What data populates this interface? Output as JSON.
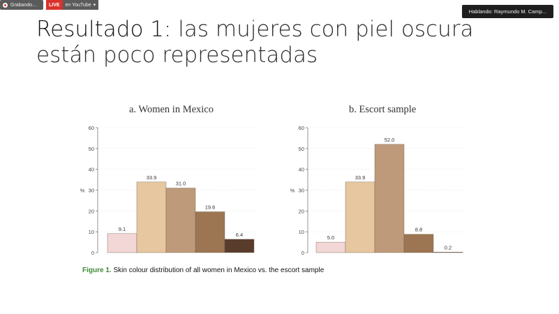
{
  "topbar": {
    "recording_label": "Grabando...",
    "live_badge": "LIVE",
    "live_target": "en YouTube",
    "speaking": "Hablando: Raymundo M. Camp..."
  },
  "slide": {
    "title_lead": "Resultado 1:",
    "title_rest": " las mujeres con piel oscura están poco representadas"
  },
  "colors": {
    "bar_colors": [
      "#f3d6d6",
      "#e7c7a0",
      "#be9a7a",
      "#9c7652",
      "#5a3c2c"
    ]
  },
  "chart_data": [
    {
      "type": "bar",
      "title": "a.  Women in Mexico",
      "ylabel": "%",
      "ylim": [
        0,
        60
      ],
      "yticks": [
        "0",
        "10",
        "20",
        "30",
        "40",
        "50",
        "60"
      ],
      "values": [
        9.1,
        33.9,
        31.0,
        19.6,
        6.4
      ],
      "labels": [
        "9.1",
        "33.9",
        "31.0",
        "19.6",
        "6.4"
      ],
      "grid": true
    },
    {
      "type": "bar",
      "title": "b.  Escort sample",
      "ylabel": "%",
      "ylim": [
        0,
        60
      ],
      "yticks": [
        "0",
        "10",
        "20",
        "30",
        "40",
        "50",
        "60"
      ],
      "values": [
        5.0,
        33.9,
        52.0,
        8.8,
        0.2
      ],
      "labels": [
        "5.0",
        "33.9",
        "52.0",
        "8.8",
        "0.2"
      ],
      "grid": true
    }
  ],
  "caption": {
    "figure_label": "Figure 1.",
    "text": " Skin colour distribution of all women in Mexico vs. the escort sample"
  }
}
